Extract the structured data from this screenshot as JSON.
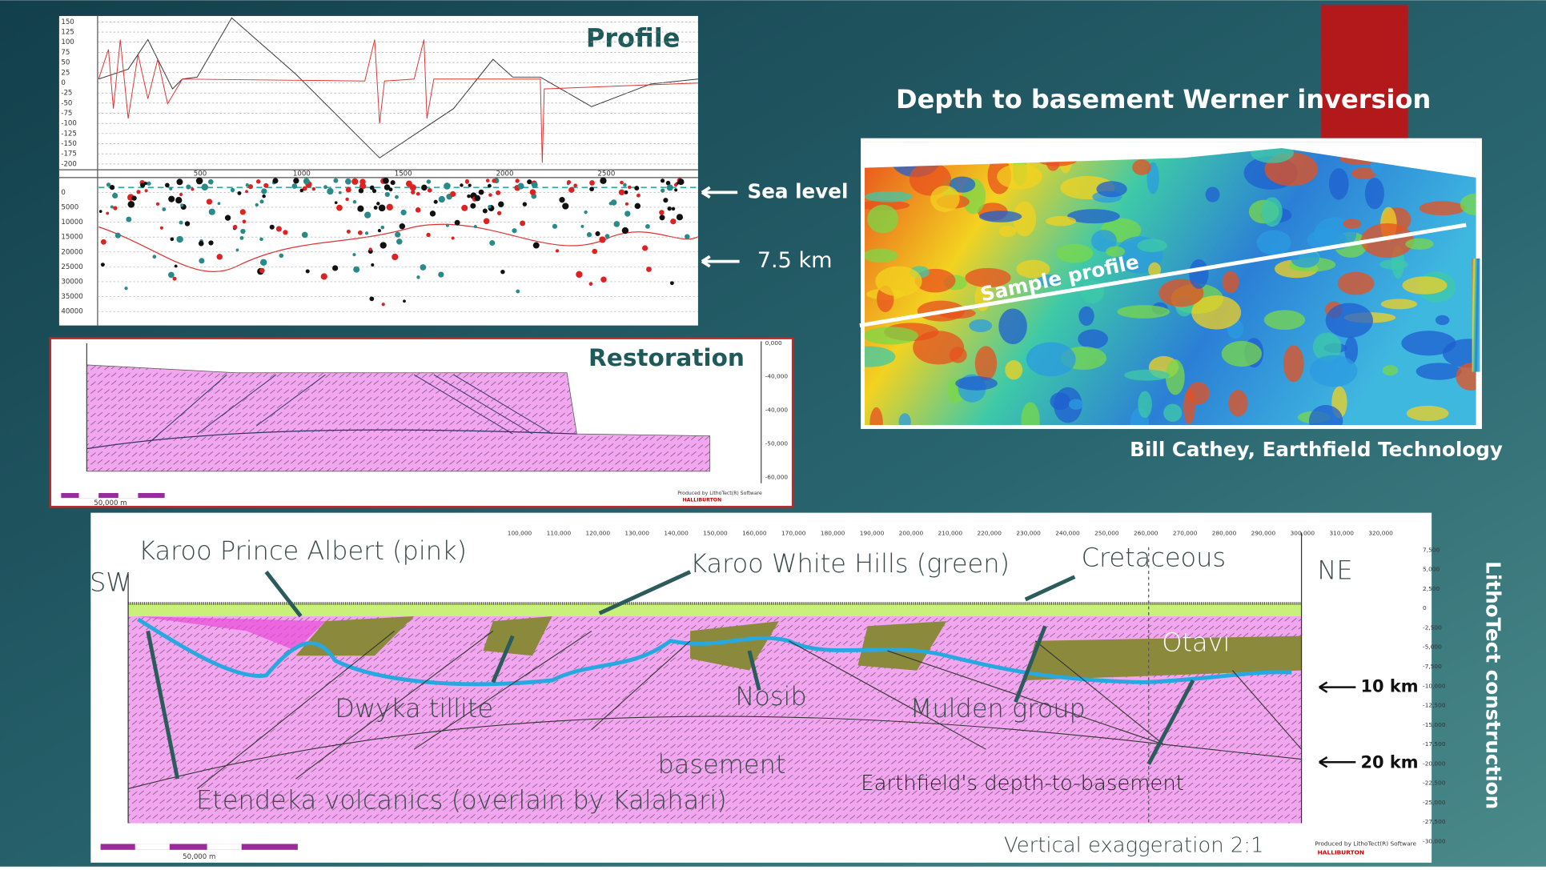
{
  "profile": {
    "title": "Profile",
    "anomaly_axis_labels": [
      "150",
      "125",
      "100",
      "75",
      "50",
      "25",
      "0",
      "-25",
      "-50",
      "-75",
      "-100",
      "-125",
      "-150",
      "-175",
      "-200"
    ],
    "distance_labels": [
      "500",
      "1000",
      "1500",
      "2000",
      "2500"
    ],
    "depth_axis_labels": [
      "0",
      "5000",
      "10000",
      "15000",
      "20000",
      "25000",
      "30000",
      "35000",
      "40000"
    ],
    "sea_level": "Sea level",
    "depth_marker": "7.5 km"
  },
  "restoration": {
    "title": "Restoration",
    "depth_labels": [
      "0,000",
      "-40,000",
      "-40,000",
      "-50,000",
      "-60,000"
    ],
    "scale_label": "50,000 m",
    "credit": "Produced by LithoTect(R) Software",
    "company": "HALLIBURTON"
  },
  "depth_map": {
    "title": "Depth to basement Werner inversion",
    "profile_label": "Sample profile",
    "credit": "Bill Cathey, Earthfield Technology"
  },
  "cross_section": {
    "distance_labels": [
      "100,000",
      "110,000",
      "120,000",
      "130,000",
      "140,000",
      "150,000",
      "160,000",
      "170,000",
      "180,000",
      "190,000",
      "200,000",
      "210,000",
      "220,000",
      "230,000",
      "240,000",
      "250,000",
      "260,000",
      "270,000",
      "280,000",
      "290,000",
      "300,000",
      "310,000",
      "320,000"
    ],
    "depth_labels": [
      "7,500",
      "5,000",
      "2,500",
      "0",
      "-2,500",
      "-5,000",
      "-7,500",
      "-10,000",
      "-12,500",
      "-15,000",
      "-17,500",
      "-20,000",
      "-22,500",
      "-25,000",
      "-27,500",
      "-30,000"
    ],
    "southwest": "SW",
    "northeast": "NE",
    "units": {
      "karoo_prince_albert": "Karoo Prince Albert (pink)",
      "karoo_white_hills": "Karoo White Hills (green)",
      "cretaceous": "Cretaceous",
      "otavi": "Otavi",
      "dwyka": "Dwyka tillite",
      "nosib": "Nosib",
      "mulden": "Mulden group",
      "basement": "basement",
      "etendeka": "Etendeka volcanics (overlain by Kalahari)",
      "earthfield": "Earthfield's depth-to-basement"
    },
    "marker_10": "10 km",
    "marker_20": "20 km",
    "exaggeration": "Vertical exaggeration  2:1",
    "scale_label": "50,000 m",
    "credit": "Produced by LithoTect(R) Software",
    "company": "HALLIBURTON",
    "side_title": "LithoTect construction"
  }
}
